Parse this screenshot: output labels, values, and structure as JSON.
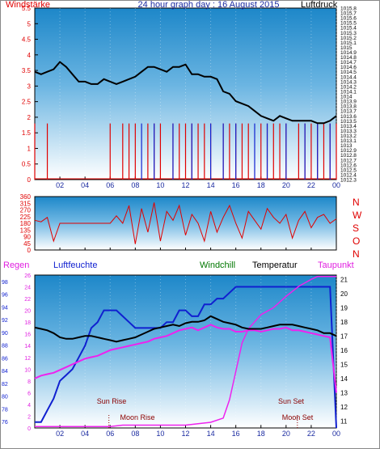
{
  "header": {
    "left_label": "Windstärke",
    "title": "24 hour graph day : 16 August 2015",
    "right_label": "Luftdruck"
  },
  "bottom_header": {
    "regen": "Regen",
    "luftfeuchte": "Luftfeuchte",
    "windchill": "Windchill",
    "temperatur": "Temperatur",
    "taupunkt": "Taupunkt"
  },
  "annotations": {
    "sun_rise": "Sun Rise",
    "moon_rise": "Moon Rise",
    "sun_set": "Sun Set",
    "moon_set": "Moon Set"
  },
  "colors": {
    "plot_top": "#1d87c9",
    "plot_bottom": "#ffffff",
    "red": "#e00000",
    "blue": "#1020d0",
    "black": "#000000",
    "magenta": "#ee22ee",
    "green": "#007700",
    "dark_blue": "#1a2aa0"
  },
  "chart_data": [
    {
      "type": "line",
      "title": "24 hour graph day : 16 August 2015",
      "x_tick_labels": [
        "02",
        "04",
        "06",
        "08",
        "10",
        "12",
        "14",
        "16",
        "18",
        "20",
        "22",
        "00"
      ],
      "xlim": [
        0,
        24
      ],
      "left_axis": {
        "label": "Windstärke",
        "ticks": [
          "0",
          "0.5",
          "1",
          "1.5",
          "2",
          "2.5",
          "3",
          "3.5",
          "4",
          "4.5",
          "5",
          "5.5"
        ],
        "range": [
          0,
          5.5
        ]
      },
      "right_axis": {
        "label": "Luftdruck",
        "ticks": [
          "1012.3",
          "1012.4",
          "1012.5",
          "1012.6",
          "1012.7",
          "1012.8",
          "1012.9",
          "1013",
          "1013.1",
          "1013.2",
          "1013.3",
          "1013.4",
          "1013.5",
          "1013.6",
          "1013.7",
          "1013.8",
          "1013.9",
          "1014",
          "1014.1",
          "1014.2",
          "1014.3",
          "1014.4",
          "1014.5",
          "1014.6",
          "1014.7",
          "1014.8",
          "1014.9",
          "1015",
          "1015.1",
          "1015.2",
          "1015.3",
          "1015.4",
          "1015.5",
          "1015.6",
          "1015.7",
          "1015.8"
        ],
        "range": [
          1012.3,
          1015.8
        ]
      },
      "series": [
        {
          "color": "#000000",
          "axis": "right",
          "x": [
            0,
            0.5,
            1,
            1.5,
            2,
            2.5,
            3,
            3.5,
            4,
            4.5,
            5,
            5.5,
            6,
            6.5,
            7,
            7.5,
            8,
            8.5,
            9,
            9.5,
            10,
            10.5,
            11,
            11.5,
            12,
            12.5,
            13,
            13.5,
            14,
            14.5,
            15,
            15.5,
            16,
            16.5,
            17,
            17.5,
            18,
            18.5,
            19,
            19.5,
            20,
            20.5,
            21,
            21.5,
            22,
            22.5,
            23,
            23.5,
            24
          ],
          "y": [
            1014.5,
            1014.45,
            1014.5,
            1014.55,
            1014.7,
            1014.6,
            1014.45,
            1014.3,
            1014.3,
            1014.25,
            1014.25,
            1014.35,
            1014.3,
            1014.25,
            1014.3,
            1014.35,
            1014.4,
            1014.5,
            1014.6,
            1014.6,
            1014.55,
            1014.5,
            1014.6,
            1014.6,
            1014.65,
            1014.45,
            1014.45,
            1014.4,
            1014.4,
            1014.35,
            1014.1,
            1014.05,
            1013.9,
            1013.85,
            1013.8,
            1013.7,
            1013.6,
            1013.55,
            1013.5,
            1013.6,
            1013.55,
            1013.5,
            1013.5,
            1013.5,
            1013.5,
            1013.45,
            1013.45,
            1013.5,
            1013.6
          ]
        },
        {
          "color": "#e00000",
          "axis": "left",
          "x": [
            0,
            0.5,
            1,
            1.5,
            2,
            2.5,
            3,
            3.5,
            4,
            4.5,
            5,
            5.5,
            6,
            6.5,
            7,
            7.5,
            8,
            8.5,
            9,
            9.5,
            10,
            10.5,
            11,
            11.5,
            12,
            12.5,
            13,
            13.5,
            14,
            14.5,
            15,
            15.5,
            16,
            16.5,
            17,
            17.5,
            18,
            18.5,
            19,
            19.5,
            20,
            20.5,
            21,
            21.5,
            22,
            22.5,
            23,
            23.5,
            24
          ],
          "y": [
            1.8,
            0,
            1.8,
            0,
            0,
            0,
            0,
            0,
            0,
            0,
            0,
            0,
            1.8,
            0,
            1.8,
            1.8,
            1.8,
            0,
            1.8,
            1.8,
            1.8,
            0,
            1.8,
            1.8,
            1.8,
            1.8,
            1.8,
            1.8,
            1.8,
            0,
            1.8,
            1.8,
            1.8,
            1.8,
            1.8,
            0,
            1.8,
            1.8,
            1.8,
            1.8,
            1.8,
            0,
            1.8,
            1.8,
            1.8,
            1.8,
            1.8,
            1.8,
            1.8
          ]
        },
        {
          "color": "#1020d0",
          "axis": "left",
          "x": [
            8,
            8.5,
            9,
            9.5,
            10,
            10.5,
            11,
            11.5,
            12,
            12.5,
            13,
            13.5,
            14,
            14.5,
            15,
            15.5,
            16,
            16.5,
            17,
            17.5,
            18,
            18.5,
            19,
            19.5,
            20,
            20.5,
            21,
            21.5,
            22,
            22.5,
            23,
            23.5
          ],
          "y": [
            0,
            1.8,
            0,
            1.8,
            0,
            0,
            1.8,
            0,
            0,
            1.8,
            0,
            0,
            1.8,
            0,
            1.8,
            0,
            1.8,
            0,
            0,
            1.8,
            0,
            1.8,
            0,
            0,
            1.8,
            0,
            0,
            1.8,
            0,
            1.8,
            0,
            1.8
          ]
        }
      ]
    },
    {
      "type": "line",
      "x_tick_labels": [
        "02",
        "04",
        "06",
        "08",
        "10",
        "12",
        "14",
        "16",
        "18",
        "20",
        "22",
        "00"
      ],
      "xlim": [
        0,
        24
      ],
      "left_axis": {
        "ticks": [
          "0",
          "45",
          "90",
          "135",
          "180",
          "225",
          "270",
          "315",
          "360"
        ],
        "range": [
          0,
          360
        ]
      },
      "right_axis": {
        "ticks": [
          "N",
          "W",
          "S",
          "O",
          "N"
        ]
      },
      "series": [
        {
          "color": "#e00000",
          "x": [
            0,
            0.5,
            1,
            1.5,
            2,
            2.5,
            3,
            3.5,
            4,
            4.5,
            5,
            5.5,
            6,
            6.5,
            7,
            7.5,
            8,
            8.5,
            9,
            9.5,
            10,
            10.5,
            11,
            11.5,
            12,
            12.5,
            13,
            13.5,
            14,
            14.5,
            15,
            15.5,
            16,
            16.5,
            17,
            17.5,
            18,
            18.5,
            19,
            19.5,
            20,
            20.5,
            21,
            21.5,
            22,
            22.5,
            23,
            23.5,
            24
          ],
          "y": [
            200,
            190,
            220,
            60,
            180,
            180,
            180,
            180,
            180,
            180,
            180,
            180,
            180,
            230,
            180,
            300,
            40,
            280,
            120,
            320,
            60,
            260,
            200,
            300,
            100,
            240,
            180,
            60,
            260,
            120,
            220,
            300,
            180,
            80,
            260,
            200,
            140,
            280,
            220,
            180,
            240,
            80,
            200,
            260,
            150,
            220,
            240,
            180,
            210
          ]
        }
      ]
    },
    {
      "type": "line",
      "x_tick_labels": [
        "02",
        "04",
        "06",
        "08",
        "10",
        "12",
        "14",
        "16",
        "18",
        "20",
        "22",
        "00"
      ],
      "xlim": [
        0,
        24
      ],
      "left_axis_regen": {
        "label": "Regen",
        "ticks": [
          "76",
          "78",
          "80",
          "82",
          "84",
          "86",
          "88",
          "90",
          "92",
          "94",
          "96",
          "98"
        ]
      },
      "left_axis_humidity": {
        "label": "Luftfeuchte",
        "ticks": [
          "0",
          "2",
          "4",
          "6",
          "8",
          "10",
          "12",
          "14",
          "16",
          "18",
          "20",
          "22",
          "24",
          "26"
        ],
        "range": [
          0,
          26
        ]
      },
      "right_axis": {
        "label": "Temperatur",
        "ticks": [
          "11",
          "12",
          "13",
          "14",
          "15",
          "16",
          "17",
          "18",
          "19",
          "20",
          "21"
        ],
        "range": [
          10.5,
          21.3
        ]
      },
      "series": [
        {
          "color": "#000000",
          "axis": "right",
          "x": [
            0,
            0.5,
            1,
            1.5,
            2,
            2.5,
            3,
            3.5,
            4,
            4.5,
            5,
            5.5,
            6,
            6.5,
            7,
            7.5,
            8,
            8.5,
            9,
            9.5,
            10,
            10.5,
            11,
            11.5,
            12,
            12.5,
            13,
            13.5,
            14,
            14.5,
            15,
            15.5,
            16,
            16.5,
            17,
            17.5,
            18,
            18.5,
            19,
            19.5,
            20,
            20.5,
            21,
            21.5,
            22,
            22.5,
            23,
            23.5,
            24
          ],
          "y": [
            17.6,
            17.5,
            17.4,
            17.2,
            16.9,
            16.8,
            16.8,
            16.9,
            17,
            17,
            16.9,
            16.8,
            16.7,
            16.6,
            16.7,
            16.8,
            16.9,
            17.1,
            17.3,
            17.5,
            17.6,
            17.7,
            17.8,
            17.7,
            17.9,
            18,
            18,
            18.1,
            18.4,
            18.2,
            18,
            17.9,
            17.8,
            17.6,
            17.5,
            17.5,
            17.5,
            17.6,
            17.7,
            17.8,
            17.8,
            17.8,
            17.7,
            17.6,
            17.5,
            17.4,
            17.2,
            17.2,
            17
          ]
        },
        {
          "color": "#ee22ee",
          "axis": "right",
          "x": [
            0,
            0.5,
            1,
            1.5,
            2,
            2.5,
            3,
            3.5,
            4,
            4.5,
            5,
            5.5,
            6,
            6.5,
            7,
            7.5,
            8,
            8.5,
            9,
            9.5,
            10,
            10.5,
            11,
            11.5,
            12,
            12.5,
            13,
            13.5,
            14,
            14.5,
            15,
            15.5,
            16,
            16.5,
            17,
            17.5,
            18,
            18.5,
            19,
            19.5,
            20,
            20.5,
            21,
            21.5,
            22,
            22.5,
            23,
            23.5,
            24
          ],
          "y": [
            14,
            14.2,
            14.3,
            14.4,
            14.6,
            14.8,
            15,
            15.2,
            15.4,
            15.5,
            15.6,
            15.8,
            16,
            16.1,
            16.2,
            16.3,
            16.4,
            16.5,
            16.6,
            16.8,
            16.9,
            17,
            17.2,
            17.4,
            17.5,
            17.6,
            17.4,
            17.6,
            17.8,
            17.6,
            17.5,
            17.5,
            17.3,
            17.3,
            17.4,
            17.4,
            17.3,
            17.4,
            17.5,
            17.5,
            17.6,
            17.4,
            17.4,
            17.3,
            17.2,
            17.1,
            17,
            16.9,
            13
          ]
        },
        {
          "color": "#1020d0",
          "axis": "humidity",
          "x": [
            0,
            0.5,
            1,
            1.5,
            2,
            2.5,
            3,
            3.5,
            4,
            4.5,
            5,
            5.5,
            6,
            6.5,
            7,
            7.5,
            8,
            8.5,
            9,
            9.5,
            10,
            10.5,
            11,
            11.5,
            12,
            12.5,
            13,
            13.5,
            14,
            14.5,
            15,
            15.5,
            16,
            16.5,
            17,
            17.5,
            18,
            18.5,
            19,
            19.5,
            20,
            20.5,
            21,
            21.5,
            22,
            22.5,
            23,
            23.5,
            24
          ],
          "y": [
            1,
            1,
            3,
            5,
            8,
            9,
            10,
            12,
            14,
            17,
            18,
            20,
            20,
            20,
            19,
            18,
            17,
            17,
            17,
            17,
            17,
            18,
            18,
            20,
            20,
            19,
            19,
            21,
            21,
            22,
            22,
            23,
            24,
            24,
            24,
            24,
            24,
            24,
            24,
            24,
            24,
            24,
            24,
            24,
            24,
            24,
            24,
            24,
            0
          ]
        },
        {
          "color": "#ee22ee",
          "axis": "right_dew_curve",
          "x": [
            0,
            1,
            2,
            3,
            4,
            5,
            6,
            7,
            8,
            9,
            10,
            11,
            12,
            13,
            14,
            15,
            15.5,
            16,
            16.5,
            17,
            18,
            19,
            20,
            21,
            22,
            22.5,
            23,
            24
          ],
          "y": [
            10.6,
            10.6,
            10.6,
            10.6,
            10.6,
            10.6,
            10.6,
            10.7,
            10.7,
            10.7,
            10.7,
            10.7,
            10.7,
            10.8,
            10.9,
            11.2,
            12.5,
            14.5,
            16.5,
            17.5,
            18.5,
            19,
            19.8,
            20.5,
            21,
            21.2,
            21.2,
            21.2
          ]
        }
      ]
    }
  ]
}
